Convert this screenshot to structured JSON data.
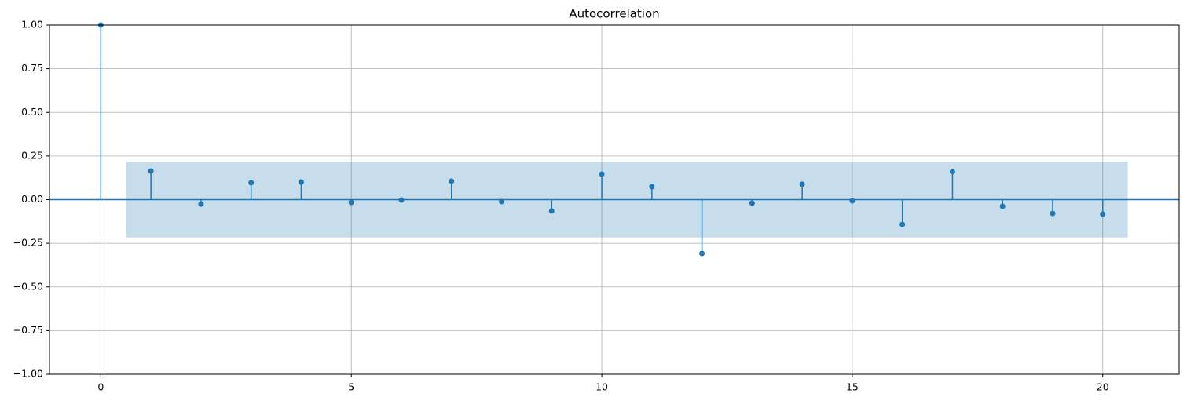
{
  "chart_data": {
    "type": "stem",
    "title": "Autocorrelation",
    "x": [
      0,
      1,
      2,
      3,
      4,
      5,
      6,
      7,
      8,
      9,
      10,
      11,
      12,
      13,
      14,
      15,
      16,
      17,
      18,
      19,
      20
    ],
    "values": [
      1.0,
      0.164,
      -0.025,
      0.097,
      0.101,
      -0.016,
      -0.002,
      0.106,
      -0.011,
      -0.065,
      0.146,
      0.074,
      -0.308,
      -0.02,
      0.088,
      -0.007,
      -0.142,
      0.16,
      -0.038,
      -0.079,
      -0.083
    ],
    "color": "#1f77b4",
    "confidence_band": {
      "x": [
        0.5,
        20.5
      ],
      "lower": -0.217,
      "upper": 0.217
    },
    "hline": 0,
    "xlim": [
      -1.025,
      21.525
    ],
    "xticks": [
      0,
      5,
      10,
      15,
      20
    ],
    "ylim": [
      -1,
      1
    ],
    "yticks": [
      {
        "value": -1,
        "label": "−1.00"
      },
      {
        "value": -0.75,
        "label": "−0.75"
      },
      {
        "value": -0.5,
        "label": "−0.50"
      },
      {
        "value": -0.25,
        "label": "−0.25"
      },
      {
        "value": 0,
        "label": "0.00"
      },
      {
        "value": 0.25,
        "label": "0.25"
      },
      {
        "value": 0.5,
        "label": "0.50"
      },
      {
        "value": 0.75,
        "label": "0.75"
      },
      {
        "value": 1,
        "label": "1.00"
      }
    ],
    "grid": true
  }
}
